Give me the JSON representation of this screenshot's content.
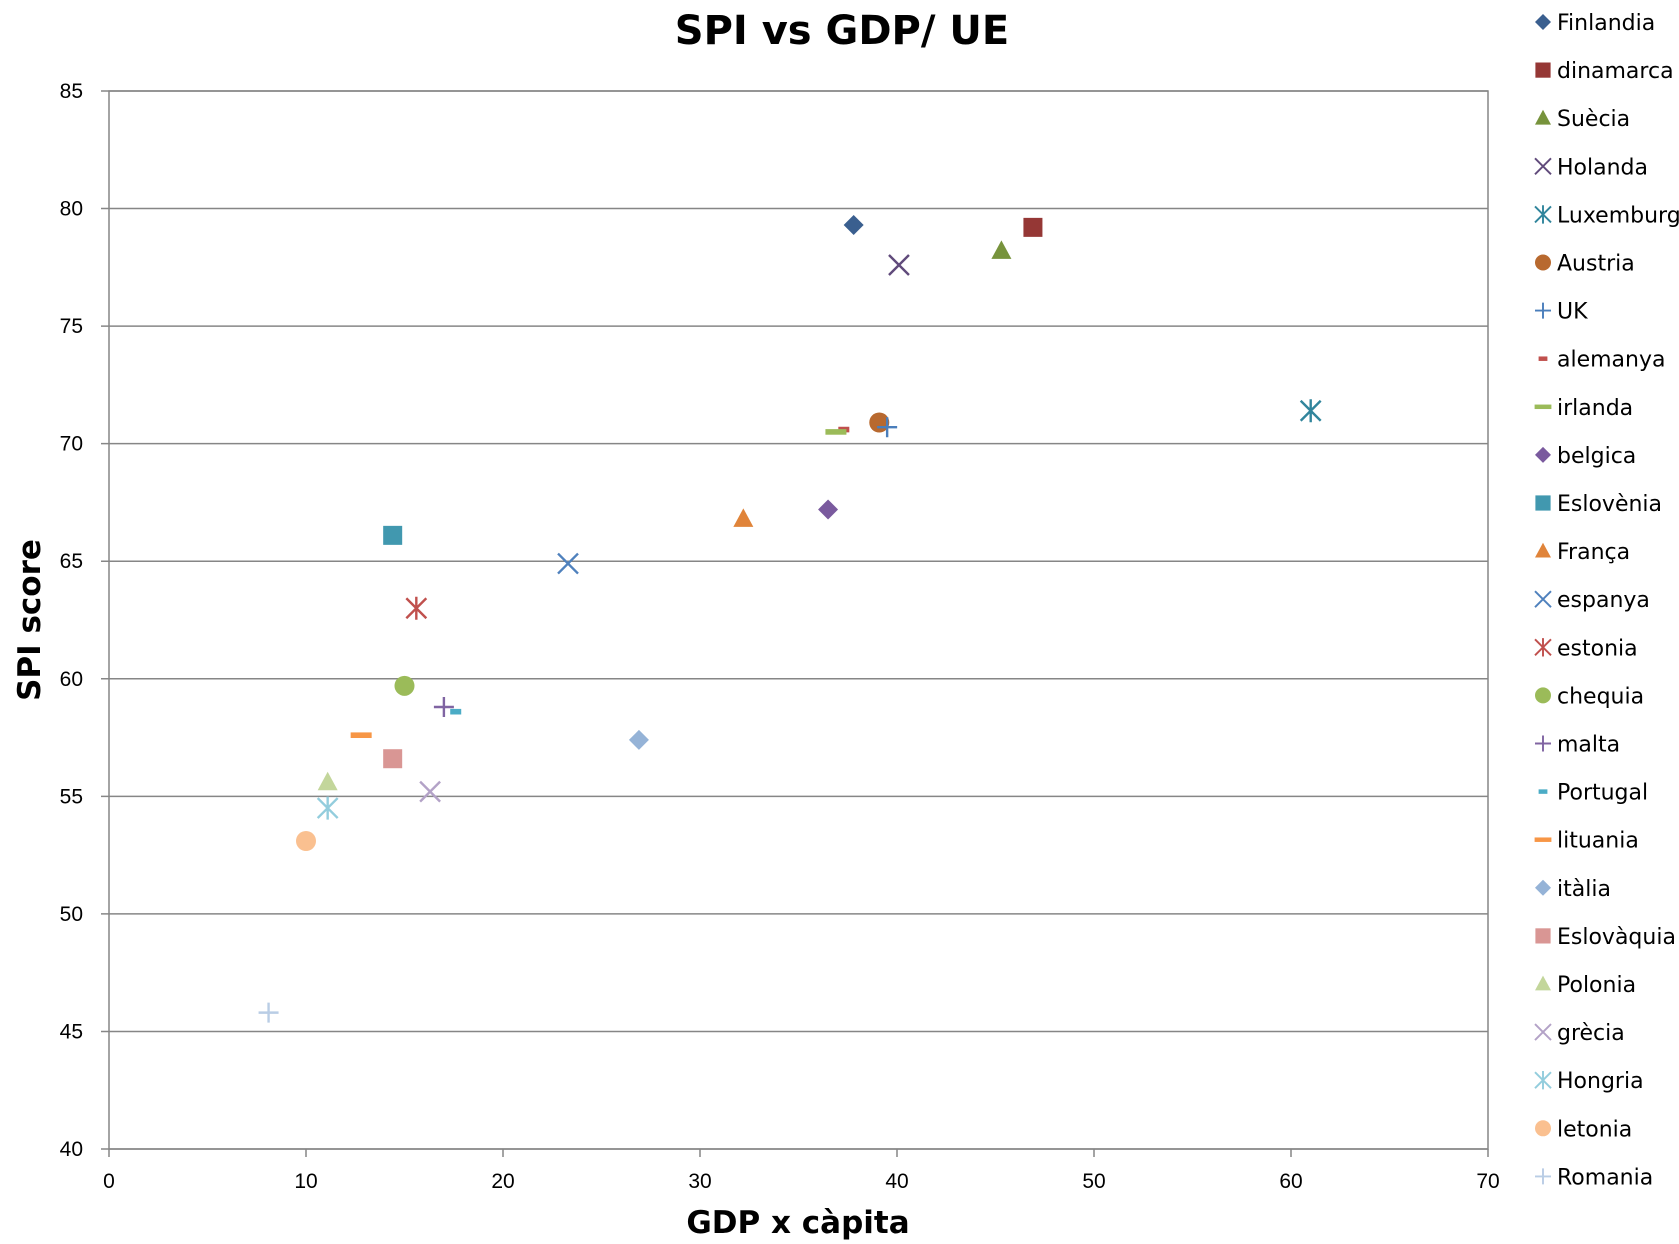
{
  "chart_data": {
    "type": "scatter",
    "title": "SPI vs GDP/ UE",
    "xlabel": "GDP x càpita",
    "ylabel": "SPI score",
    "xlim": [
      0,
      70
    ],
    "ylim": [
      40,
      85
    ],
    "x_ticks": [
      "0",
      "10",
      "20",
      "30",
      "40",
      "50",
      "60",
      "70"
    ],
    "y_ticks": [
      "40",
      "45",
      "50",
      "55",
      "60",
      "65",
      "70",
      "75",
      "80",
      "85"
    ],
    "grid": "horizontal",
    "legend_position": "right",
    "series": [
      {
        "name": "Finlandia",
        "x": 37.8,
        "y": 79.3,
        "marker": "diamond",
        "color": "#3A5F8F"
      },
      {
        "name": "dinamarca",
        "x": 46.9,
        "y": 79.2,
        "marker": "square",
        "color": "#953735"
      },
      {
        "name": "Suècia",
        "x": 45.3,
        "y": 78.2,
        "marker": "triangle",
        "color": "#77933C"
      },
      {
        "name": "Holanda",
        "x": 40.1,
        "y": 77.6,
        "marker": "x",
        "color": "#604A7B"
      },
      {
        "name": "Luxemburg",
        "x": 61.0,
        "y": 71.4,
        "marker": "star",
        "color": "#31859C"
      },
      {
        "name": "Austria",
        "x": 39.1,
        "y": 70.9,
        "marker": "circle",
        "color": "#B8692F"
      },
      {
        "name": "UK",
        "x": 39.5,
        "y": 70.7,
        "marker": "plus",
        "color": "#4A7EBB"
      },
      {
        "name": "alemanya",
        "x": 37.3,
        "y": 70.6,
        "marker": "dash",
        "color": "#C0504D"
      },
      {
        "name": "irlanda",
        "x": 36.9,
        "y": 70.5,
        "marker": "longdash",
        "color": "#9BBB59"
      },
      {
        "name": "belgica",
        "x": 36.5,
        "y": 67.2,
        "marker": "diamond",
        "color": "#7A5A9E"
      },
      {
        "name": "Eslovènia",
        "x": 14.4,
        "y": 66.1,
        "marker": "square",
        "color": "#4198AF"
      },
      {
        "name": "França",
        "x": 32.2,
        "y": 66.8,
        "marker": "triangle",
        "color": "#E0843A"
      },
      {
        "name": "espanya",
        "x": 23.3,
        "y": 64.9,
        "marker": "x",
        "color": "#4F81BD"
      },
      {
        "name": "estonia",
        "x": 15.6,
        "y": 63.0,
        "marker": "star",
        "color": "#C0504D"
      },
      {
        "name": "chequia",
        "x": 15.0,
        "y": 59.7,
        "marker": "circle",
        "color": "#9BBB59"
      },
      {
        "name": "malta",
        "x": 17.0,
        "y": 58.8,
        "marker": "plus",
        "color": "#8064A2"
      },
      {
        "name": "Portugal",
        "x": 17.6,
        "y": 58.6,
        "marker": "dash",
        "color": "#4BACC6"
      },
      {
        "name": "lituania",
        "x": 12.8,
        "y": 57.6,
        "marker": "longdash",
        "color": "#F79646"
      },
      {
        "name": "itàlia",
        "x": 26.9,
        "y": 57.4,
        "marker": "diamond",
        "color": "#95B3D7"
      },
      {
        "name": "Eslovàquia",
        "x": 14.4,
        "y": 56.6,
        "marker": "square",
        "color": "#D99694"
      },
      {
        "name": "Polonia",
        "x": 11.1,
        "y": 55.6,
        "marker": "triangle",
        "color": "#C3D69B"
      },
      {
        "name": "grècia",
        "x": 16.3,
        "y": 55.2,
        "marker": "x",
        "color": "#B3A2C7"
      },
      {
        "name": "Hongria",
        "x": 11.1,
        "y": 54.5,
        "marker": "star",
        "color": "#93CDDD"
      },
      {
        "name": "letonia",
        "x": 10.0,
        "y": 53.1,
        "marker": "circle",
        "color": "#FAC090"
      },
      {
        "name": "Romania",
        "x": 8.1,
        "y": 45.8,
        "marker": "plus",
        "color": "#B9CDE5"
      }
    ]
  }
}
